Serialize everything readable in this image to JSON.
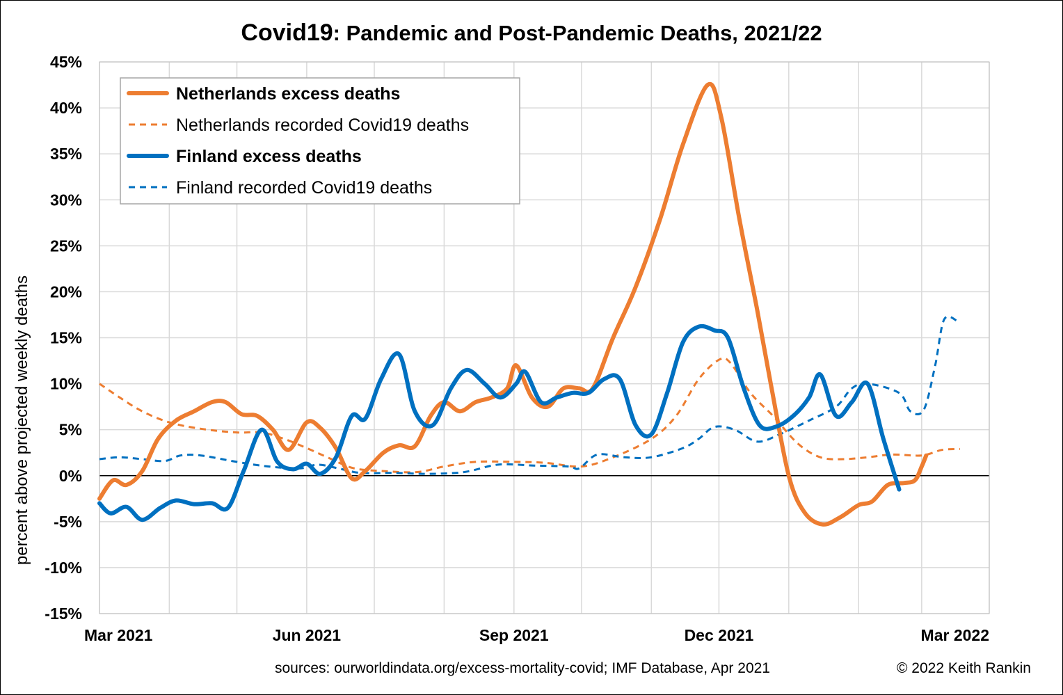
{
  "chart_data": {
    "type": "line",
    "title_bold": "Covid19",
    "title_rest": ": Pandemic and Post-Pandemic Deaths, 2021/22",
    "ylabel": "percent above projected weekly deaths",
    "ylim": [
      -15,
      45
    ],
    "y_ticks": [
      "45%",
      "40%",
      "35%",
      "30%",
      "25%",
      "20%",
      "15%",
      "10%",
      "5%",
      "0%",
      "-5%",
      "-10%",
      "-15%"
    ],
    "x_ticks": [
      "Mar 2021",
      "Jun 2021",
      "Sep 2021",
      "Dec 2021",
      "Mar 2022"
    ],
    "x_ticks_date": [
      "2021-03-01",
      "2021-06-01",
      "2021-09-01",
      "2021-12-01",
      "2022-03-01"
    ],
    "xlim": [
      "2021-03-01",
      "2022-03-31"
    ],
    "grid": true,
    "legend_position": "top-left",
    "series": [
      {
        "name": "Netherlands excess deaths",
        "color": "#ED7D31",
        "style": "solid",
        "bold": true,
        "points": [
          [
            "2021-03-01",
            -2.5
          ],
          [
            "2021-03-07",
            -0.5
          ],
          [
            "2021-03-13",
            -1.0
          ],
          [
            "2021-03-20",
            0.5
          ],
          [
            "2021-03-27",
            4.0
          ],
          [
            "2021-04-04",
            6.0
          ],
          [
            "2021-04-12",
            7.0
          ],
          [
            "2021-04-20",
            8.0
          ],
          [
            "2021-04-26",
            8.0
          ],
          [
            "2021-05-03",
            6.7
          ],
          [
            "2021-05-10",
            6.5
          ],
          [
            "2021-05-17",
            5.0
          ],
          [
            "2021-05-24",
            2.8
          ],
          [
            "2021-06-01",
            5.8
          ],
          [
            "2021-06-07",
            5.2
          ],
          [
            "2021-06-14",
            3.0
          ],
          [
            "2021-06-21",
            -0.3
          ],
          [
            "2021-06-27",
            0.5
          ],
          [
            "2021-07-05",
            2.5
          ],
          [
            "2021-07-12",
            3.3
          ],
          [
            "2021-07-19",
            3.2
          ],
          [
            "2021-07-26",
            6.5
          ],
          [
            "2021-08-01",
            8.0
          ],
          [
            "2021-08-08",
            7.0
          ],
          [
            "2021-08-15",
            8.0
          ],
          [
            "2021-08-22",
            8.5
          ],
          [
            "2021-08-29",
            9.5
          ],
          [
            "2021-09-02",
            12.0
          ],
          [
            "2021-09-09",
            8.5
          ],
          [
            "2021-09-16",
            7.5
          ],
          [
            "2021-09-23",
            9.5
          ],
          [
            "2021-09-30",
            9.5
          ],
          [
            "2021-10-06",
            9.5
          ],
          [
            "2021-10-15",
            15.0
          ],
          [
            "2021-10-25",
            20.5
          ],
          [
            "2021-11-05",
            28.0
          ],
          [
            "2021-11-15",
            36.0
          ],
          [
            "2021-11-26",
            42.5
          ],
          [
            "2021-12-02",
            39.0
          ],
          [
            "2021-12-10",
            28.0
          ],
          [
            "2021-12-18",
            18.0
          ],
          [
            "2021-12-24",
            10.0
          ],
          [
            "2022-01-01",
            0.0
          ],
          [
            "2022-01-08",
            -4.0
          ],
          [
            "2022-01-16",
            -5.3
          ],
          [
            "2022-01-24",
            -4.5
          ],
          [
            "2022-02-01",
            -3.2
          ],
          [
            "2022-02-07",
            -2.8
          ],
          [
            "2022-02-14",
            -1.0
          ],
          [
            "2022-02-21",
            -0.8
          ],
          [
            "2022-02-26",
            -0.5
          ],
          [
            "2022-03-01",
            1.0
          ],
          [
            "2022-03-03",
            2.2
          ]
        ]
      },
      {
        "name": "Netherlands recorded Covid19 deaths",
        "color": "#ED7D31",
        "style": "dashed",
        "bold": false,
        "points": [
          [
            "2021-03-01",
            10.0
          ],
          [
            "2021-03-10",
            8.5
          ],
          [
            "2021-03-20",
            7.0
          ],
          [
            "2021-04-01",
            5.8
          ],
          [
            "2021-04-15",
            5.1
          ],
          [
            "2021-05-01",
            4.7
          ],
          [
            "2021-05-12",
            4.7
          ],
          [
            "2021-05-22",
            4.0
          ],
          [
            "2021-06-01",
            3.0
          ],
          [
            "2021-06-12",
            1.8
          ],
          [
            "2021-06-22",
            0.8
          ],
          [
            "2021-07-05",
            0.5
          ],
          [
            "2021-07-20",
            0.4
          ],
          [
            "2021-08-01",
            1.0
          ],
          [
            "2021-08-15",
            1.5
          ],
          [
            "2021-09-01",
            1.5
          ],
          [
            "2021-09-15",
            1.4
          ],
          [
            "2021-10-01",
            1.0
          ],
          [
            "2021-10-15",
            2.0
          ],
          [
            "2021-11-01",
            4.0
          ],
          [
            "2021-11-12",
            6.5
          ],
          [
            "2021-11-22",
            10.5
          ],
          [
            "2021-12-01",
            12.6
          ],
          [
            "2021-12-06",
            12.3
          ],
          [
            "2021-12-15",
            9.0
          ],
          [
            "2021-12-25",
            6.5
          ],
          [
            "2022-01-05",
            3.5
          ],
          [
            "2022-01-15",
            2.0
          ],
          [
            "2022-01-25",
            1.8
          ],
          [
            "2022-02-05",
            2.0
          ],
          [
            "2022-02-16",
            2.3
          ],
          [
            "2022-03-01",
            2.2
          ],
          [
            "2022-03-10",
            2.8
          ],
          [
            "2022-03-18",
            2.9
          ]
        ]
      },
      {
        "name": "Finland excess deaths",
        "color": "#0070C0",
        "style": "solid",
        "bold": true,
        "points": [
          [
            "2021-03-01",
            -3.0
          ],
          [
            "2021-03-06",
            -4.1
          ],
          [
            "2021-03-13",
            -3.4
          ],
          [
            "2021-03-20",
            -4.8
          ],
          [
            "2021-03-28",
            -3.5
          ],
          [
            "2021-04-04",
            -2.7
          ],
          [
            "2021-04-12",
            -3.1
          ],
          [
            "2021-04-20",
            -3.0
          ],
          [
            "2021-04-27",
            -3.5
          ],
          [
            "2021-05-04",
            0.5
          ],
          [
            "2021-05-12",
            5.0
          ],
          [
            "2021-05-19",
            1.5
          ],
          [
            "2021-05-26",
            0.7
          ],
          [
            "2021-06-01",
            1.3
          ],
          [
            "2021-06-07",
            0.2
          ],
          [
            "2021-06-14",
            2.0
          ],
          [
            "2021-06-21",
            6.5
          ],
          [
            "2021-06-27",
            6.2
          ],
          [
            "2021-07-04",
            10.5
          ],
          [
            "2021-07-12",
            13.2
          ],
          [
            "2021-07-19",
            7.0
          ],
          [
            "2021-07-27",
            5.5
          ],
          [
            "2021-08-04",
            9.5
          ],
          [
            "2021-08-11",
            11.5
          ],
          [
            "2021-08-19",
            10.0
          ],
          [
            "2021-08-26",
            8.5
          ],
          [
            "2021-09-02",
            10.0
          ],
          [
            "2021-09-06",
            11.3
          ],
          [
            "2021-09-13",
            8.0
          ],
          [
            "2021-09-20",
            8.5
          ],
          [
            "2021-09-27",
            9.0
          ],
          [
            "2021-10-04",
            9.0
          ],
          [
            "2021-10-11",
            10.5
          ],
          [
            "2021-10-18",
            10.5
          ],
          [
            "2021-10-25",
            5.5
          ],
          [
            "2021-11-01",
            4.5
          ],
          [
            "2021-11-08",
            9.0
          ],
          [
            "2021-11-15",
            14.5
          ],
          [
            "2021-11-22",
            16.2
          ],
          [
            "2021-11-29",
            15.8
          ],
          [
            "2021-12-05",
            15.0
          ],
          [
            "2021-12-12",
            9.5
          ],
          [
            "2021-12-19",
            5.5
          ],
          [
            "2021-12-26",
            5.3
          ],
          [
            "2022-01-03",
            6.5
          ],
          [
            "2022-01-10",
            8.5
          ],
          [
            "2022-01-15",
            11.0
          ],
          [
            "2022-01-22",
            6.5
          ],
          [
            "2022-01-29",
            8.0
          ],
          [
            "2022-02-05",
            10.0
          ],
          [
            "2022-02-12",
            4.0
          ],
          [
            "2022-02-19",
            -1.5
          ]
        ]
      },
      {
        "name": "Finland recorded Covid19 deaths",
        "color": "#0070C0",
        "style": "dashed",
        "bold": false,
        "points": [
          [
            "2021-03-01",
            1.8
          ],
          [
            "2021-03-10",
            2.0
          ],
          [
            "2021-03-20",
            1.8
          ],
          [
            "2021-03-30",
            1.6
          ],
          [
            "2021-04-06",
            2.2
          ],
          [
            "2021-04-15",
            2.2
          ],
          [
            "2021-05-01",
            1.5
          ],
          [
            "2021-05-15",
            1.0
          ],
          [
            "2021-05-29",
            0.8
          ],
          [
            "2021-06-06",
            1.2
          ],
          [
            "2021-06-15",
            0.8
          ],
          [
            "2021-06-25",
            0.3
          ],
          [
            "2021-07-10",
            0.3
          ],
          [
            "2021-07-25",
            0.2
          ],
          [
            "2021-08-10",
            0.4
          ],
          [
            "2021-08-25",
            1.2
          ],
          [
            "2021-09-10",
            1.1
          ],
          [
            "2021-09-25",
            1.0
          ],
          [
            "2021-09-30",
            0.8
          ],
          [
            "2021-10-08",
            2.3
          ],
          [
            "2021-10-20",
            2.0
          ],
          [
            "2021-11-01",
            2.0
          ],
          [
            "2021-11-15",
            3.0
          ],
          [
            "2021-11-22",
            4.0
          ],
          [
            "2021-11-29",
            5.3
          ],
          [
            "2021-12-08",
            5.0
          ],
          [
            "2021-12-18",
            3.7
          ],
          [
            "2021-12-28",
            4.5
          ],
          [
            "2022-01-10",
            6.0
          ],
          [
            "2022-01-22",
            7.5
          ],
          [
            "2022-01-29",
            9.5
          ],
          [
            "2022-02-05",
            10.0
          ],
          [
            "2022-02-19",
            9.0
          ],
          [
            "2022-02-24",
            7.0
          ],
          [
            "2022-03-02",
            7.2
          ],
          [
            "2022-03-07",
            12.0
          ],
          [
            "2022-03-11",
            17.0
          ],
          [
            "2022-03-17",
            16.8
          ]
        ]
      }
    ],
    "sources": "sources: ourworldindata.org/excess-mortality-covid; IMF Database, Apr 2021",
    "copyright": "© 2022 Keith Rankin"
  }
}
